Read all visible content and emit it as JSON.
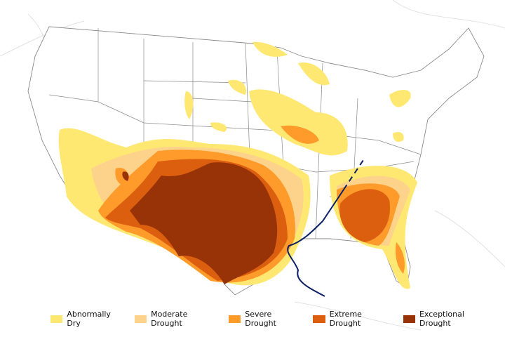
{
  "legend": {
    "items": [
      {
        "label": "Abnormally Dry",
        "color": "#FFE872"
      },
      {
        "label": "Moderate Drought",
        "color": "#FDD38B"
      },
      {
        "label": "Severe Drought",
        "color": "#FF9B2B"
      },
      {
        "label": "Extreme Drought",
        "color": "#DC5F0F"
      },
      {
        "label": "Exceptional Drought",
        "color": "#973306"
      }
    ]
  },
  "map": {
    "type": "drought-map",
    "region": "contiguous United States",
    "boundary_color": "#8a8a8a",
    "track_line_color": "#0b1f66"
  }
}
